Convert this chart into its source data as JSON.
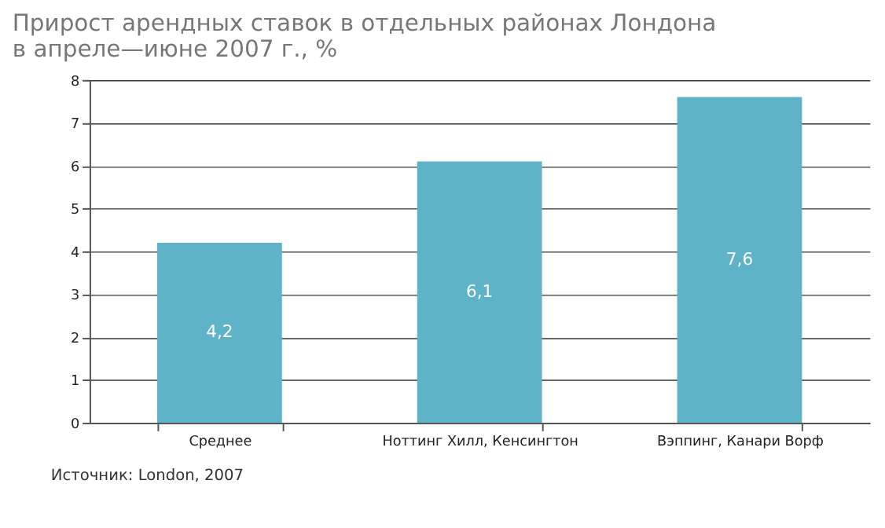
{
  "chart_data": {
    "type": "bar",
    "title": [
      "Прирост арендных ставок в отдельных районах Лондона",
      "в апреле—июне 2007 г., %"
    ],
    "categories": [
      "Среднее",
      "Ноттинг Хилл, Кенсингтон",
      "Вэппинг, Канари Ворф"
    ],
    "values": [
      4.2,
      6.1,
      7.6
    ],
    "value_labels": [
      "4,2",
      "6,1",
      "7,6"
    ],
    "color": "#5fb3c8",
    "ylim": [
      0,
      8
    ],
    "yticks": [
      0,
      1,
      2,
      3,
      4,
      5,
      6,
      7,
      8
    ],
    "grid": "y",
    "annotations": [
      "Источник: London, 2007"
    ]
  }
}
